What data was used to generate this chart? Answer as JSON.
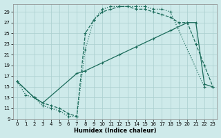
{
  "xlabel": "Humidex (Indice chaleur)",
  "bg_color": "#ceeaea",
  "grid_color": "#aacece",
  "line_color": "#1a6b5a",
  "xlim": [
    -0.5,
    23.5
  ],
  "ylim": [
    9,
    30.5
  ],
  "xticks": [
    0,
    1,
    2,
    3,
    4,
    5,
    6,
    7,
    8,
    9,
    10,
    11,
    12,
    13,
    14,
    15,
    16,
    17,
    18,
    19,
    20,
    21,
    22,
    23
  ],
  "yticks": [
    9,
    11,
    13,
    15,
    17,
    19,
    21,
    23,
    25,
    27,
    29
  ],
  "line1_x": [
    0,
    1,
    2,
    3,
    4,
    5,
    6,
    7,
    8,
    9,
    10,
    11,
    12,
    13,
    14,
    15,
    16,
    17,
    18,
    22
  ],
  "line1_y": [
    16,
    13.5,
    13,
    11.5,
    11,
    10.5,
    9.5,
    9.5,
    22,
    27.5,
    29.5,
    30,
    30,
    30,
    30,
    30,
    29.5,
    29.5,
    29,
    15
  ],
  "line2_x": [
    0,
    2,
    3,
    4,
    5,
    6,
    7,
    8,
    9,
    10,
    11,
    12,
    13,
    14,
    15,
    16,
    17,
    18,
    19,
    20,
    21,
    22,
    23
  ],
  "line2_y": [
    16,
    13,
    12,
    11.5,
    11,
    10,
    9.5,
    25,
    27.5,
    29,
    29.5,
    30,
    30,
    29.5,
    29.5,
    29,
    28.5,
    28,
    27,
    27,
    23,
    19,
    15
  ],
  "line3_x": [
    0,
    2,
    3,
    7,
    8,
    10,
    12,
    14,
    16,
    18,
    20,
    21,
    22,
    23
  ],
  "line3_y": [
    16,
    13,
    12,
    17.5,
    18,
    19.5,
    21,
    22.5,
    24,
    25.5,
    27,
    27,
    15.5,
    15
  ]
}
